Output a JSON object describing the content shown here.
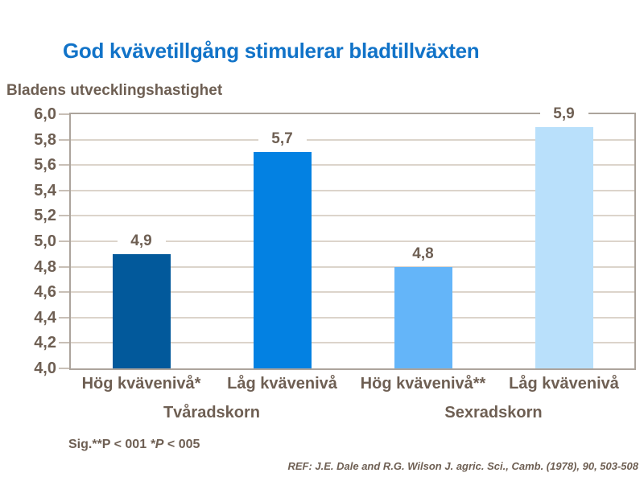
{
  "slide": {
    "title": "God kvävetillgång stimulerar bladtillväxten",
    "y_axis_title": "Bladens utvecklingshastighet",
    "footnote": {
      "prefix": "Sig.**P < 001 ",
      "italic": "*P",
      "suffix": " < 005"
    },
    "reference": "REF: J.E. Dale and R.G. Wilson J. agric.  Sci.,  Camb. (1978), 90, 503-508"
  },
  "chart_data": {
    "type": "bar",
    "title": "God kvävetillgång stimulerar bladtillväxten",
    "ylabel": "Bladens utvecklingshastighet",
    "xlabel": "",
    "categories": [
      "Hög kvävenivå*",
      "Låg kvävenivå",
      "Hög kvävenivå**",
      "Låg kvävenivå"
    ],
    "values": [
      4.9,
      5.7,
      4.8,
      5.9
    ],
    "value_labels": [
      "4,9",
      "5,7",
      "4,8",
      "5,9"
    ],
    "bar_colors": [
      "#02599b",
      "#0381e2",
      "#64b5f9",
      "#b9e0fb"
    ],
    "groups": [
      {
        "label": "Tvåradskorn",
        "span": [
          0,
          1
        ]
      },
      {
        "label": "Sexradskorn",
        "span": [
          2,
          3
        ]
      }
    ],
    "ylim": [
      4.0,
      6.0
    ],
    "ytick_step": 0.2,
    "ytick_labels": [
      "4,0",
      "4,2",
      "4,4",
      "4,6",
      "4,8",
      "5,0",
      "5,2",
      "5,4",
      "5,6",
      "5,8",
      "6,0"
    ],
    "grid": true,
    "legend": "none"
  },
  "colors": {
    "title_blue": "#1173c8",
    "text_brown": "#6e5f53",
    "gridline": "#dcd4cb",
    "plot_border": "#aca49c"
  }
}
